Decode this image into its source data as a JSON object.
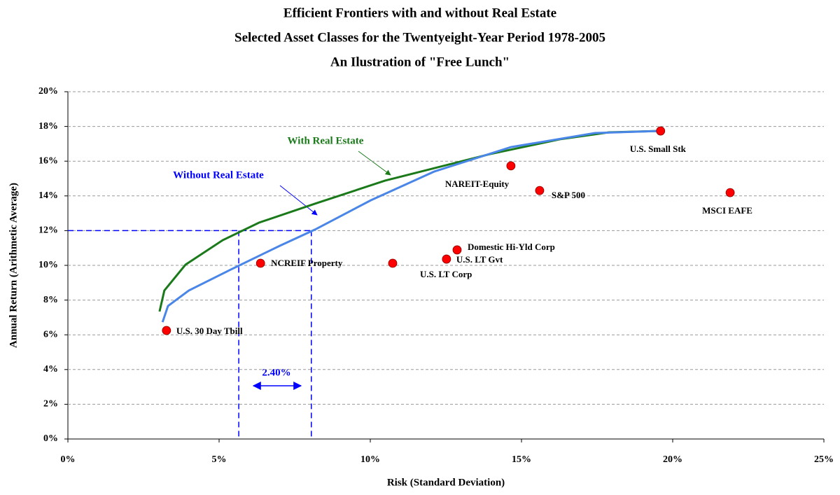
{
  "chart_data": {
    "type": "scatter",
    "title_lines": [
      "Efficient Frontiers with and without Real Estate",
      "Selected Asset Classes for the Twentyeight-Year Period 1978-2005",
      "An Ilustration of \"Free Lunch\""
    ],
    "x_label": "Risk (Standard Deviation)",
    "y_label": "Annual Return (Arithmetic Average)",
    "xlim": [
      0,
      25
    ],
    "ylim": [
      0,
      20
    ],
    "xticks": [
      {
        "value": 0,
        "label": "0%"
      },
      {
        "value": 5,
        "label": "5%"
      },
      {
        "value": 10,
        "label": "10%"
      },
      {
        "value": 15,
        "label": "15%"
      },
      {
        "value": 20,
        "label": "20%"
      },
      {
        "value": 25,
        "label": "25%"
      }
    ],
    "yticks": [
      {
        "value": 0,
        "label": "0%"
      },
      {
        "value": 2,
        "label": "2%"
      },
      {
        "value": 4,
        "label": "4%"
      },
      {
        "value": 6,
        "label": "6%"
      },
      {
        "value": 8,
        "label": "8%"
      },
      {
        "value": 10,
        "label": "10%"
      },
      {
        "value": 12,
        "label": "12%"
      },
      {
        "value": 14,
        "label": "14%"
      },
      {
        "value": 16,
        "label": "16%"
      },
      {
        "value": 18,
        "label": "18%"
      },
      {
        "value": 20,
        "label": "20%"
      }
    ],
    "grid": true,
    "points": {
      "color": "#ff0000",
      "labels": [
        "U.S. 30 Day Tbill",
        "NCREIF Property",
        "U.S. LT Corp",
        "U.S. LT Gvt",
        "Domestic Hi-Yld Corp",
        "NAREIT-Equity",
        "S&P 500",
        "U.S. Small Stk",
        "MSCI EAFE"
      ],
      "x": [
        3.26,
        6.37,
        10.74,
        12.52,
        12.87,
        14.65,
        15.6,
        19.6,
        21.9
      ],
      "y": [
        6.25,
        10.12,
        10.12,
        10.36,
        10.89,
        15.73,
        14.31,
        17.74,
        14.19
      ]
    },
    "series": [
      {
        "name": "With Real Estate",
        "color": "#1a7a1a",
        "x": [
          3.03,
          3.19,
          3.89,
          5.12,
          6.32,
          8.17,
          10.49,
          13.96,
          16.27,
          17.89,
          19.6
        ],
        "y": [
          7.34,
          8.55,
          10.04,
          11.45,
          12.46,
          13.55,
          14.88,
          16.41,
          17.26,
          17.66,
          17.74
        ]
      },
      {
        "name": "Without Real Estate",
        "color": "#4a86e8",
        "x": [
          3.13,
          3.31,
          4.0,
          5.39,
          7.01,
          8.17,
          10.02,
          12.11,
          14.65,
          17.43,
          19.6
        ],
        "y": [
          6.73,
          7.66,
          8.55,
          9.76,
          11.13,
          12.06,
          13.75,
          15.4,
          16.81,
          17.62,
          17.74
        ]
      }
    ],
    "reference_lines": {
      "color": "#0000ff",
      "y": 12,
      "x": [
        5.65,
        8.05
      ]
    },
    "gap_annotation": "2.40%"
  }
}
